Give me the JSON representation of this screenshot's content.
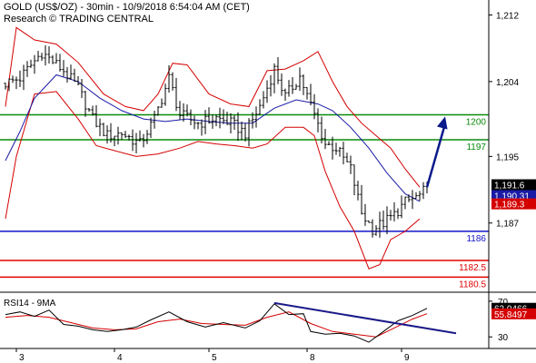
{
  "header": {
    "line1": "GOLD (US$/OZ) - 30min - 10/9/2018 6:54:04 AM (CET)",
    "line2": "Research © TRADING CENTRAL"
  },
  "colors": {
    "price": "#000000",
    "bollinger": "#d40000",
    "moving_average": "#1a1aa6",
    "resistance": "#0a8a0a",
    "support_blue": "#1414c8",
    "support_red": "#e00000",
    "arrow": "#0a1a8a",
    "rsi": "#000000",
    "rsi_ma": "#d40000",
    "rsi_trend": "#1a1a8a"
  },
  "chart_data": [
    {
      "type": "candlestick",
      "title": "GOLD (US$/OZ) - 30min",
      "price_axis_ticks": [
        "1,212",
        "1,204",
        "1,195",
        "1,187"
      ],
      "price_axis_values": [
        1212,
        1204,
        1195,
        1187
      ],
      "ylim": [
        1178.9,
        1213.8
      ],
      "x_tick_labels": [
        "3",
        "4",
        "5",
        "8",
        "9"
      ],
      "x_tick_bars": [
        3,
        30,
        56,
        83,
        109
      ],
      "bar_count": 117,
      "grid": false,
      "price_path": [
        {
          "bar": 0,
          "value": 1203.8
        },
        {
          "bar": 4,
          "value": 1204.4
        },
        {
          "bar": 10,
          "value": 1207.5
        },
        {
          "bar": 16,
          "value": 1205.3
        },
        {
          "bar": 20,
          "value": 1203.2
        },
        {
          "bar": 24,
          "value": 1199.5
        },
        {
          "bar": 28,
          "value": 1197.5
        },
        {
          "bar": 32,
          "value": 1197.8
        },
        {
          "bar": 37,
          "value": 1196.5
        },
        {
          "bar": 41,
          "value": 1199.5
        },
        {
          "bar": 45,
          "value": 1204.4
        },
        {
          "bar": 48,
          "value": 1200.0
        },
        {
          "bar": 53,
          "value": 1199.0
        },
        {
          "bar": 58,
          "value": 1199.6
        },
        {
          "bar": 62,
          "value": 1199.0
        },
        {
          "bar": 66,
          "value": 1197.8
        },
        {
          "bar": 70,
          "value": 1201.0
        },
        {
          "bar": 74,
          "value": 1205.5
        },
        {
          "bar": 77,
          "value": 1202.2
        },
        {
          "bar": 81,
          "value": 1204.6
        },
        {
          "bar": 85,
          "value": 1200.0
        },
        {
          "bar": 88,
          "value": 1196.5
        },
        {
          "bar": 91,
          "value": 1196.0
        },
        {
          "bar": 95,
          "value": 1193.5
        },
        {
          "bar": 98,
          "value": 1188.2
        },
        {
          "bar": 101,
          "value": 1186.3
        },
        {
          "bar": 104,
          "value": 1187.0
        },
        {
          "bar": 107,
          "value": 1188.0
        },
        {
          "bar": 110,
          "value": 1189.5
        },
        {
          "bar": 114,
          "value": 1190.3
        },
        {
          "bar": 116,
          "value": 1191.2
        }
      ],
      "bollinger_upper": [
        {
          "bar": 0,
          "value": 1201.0
        },
        {
          "bar": 3,
          "value": 1210.5
        },
        {
          "bar": 8,
          "value": 1209.0
        },
        {
          "bar": 14,
          "value": 1208.5
        },
        {
          "bar": 20,
          "value": 1206.3
        },
        {
          "bar": 27,
          "value": 1202.5
        },
        {
          "bar": 33,
          "value": 1201.0
        },
        {
          "bar": 38,
          "value": 1200.5
        },
        {
          "bar": 42,
          "value": 1202.5
        },
        {
          "bar": 46,
          "value": 1206.2
        },
        {
          "bar": 50,
          "value": 1206.0
        },
        {
          "bar": 56,
          "value": 1202.5
        },
        {
          "bar": 62,
          "value": 1201.3
        },
        {
          "bar": 67,
          "value": 1201.0
        },
        {
          "bar": 72,
          "value": 1205.3
        },
        {
          "bar": 77,
          "value": 1205.5
        },
        {
          "bar": 82,
          "value": 1206.5
        },
        {
          "bar": 86,
          "value": 1207.6
        },
        {
          "bar": 90,
          "value": 1204.0
        },
        {
          "bar": 94,
          "value": 1201.0
        },
        {
          "bar": 98,
          "value": 1199.0
        },
        {
          "bar": 102,
          "value": 1197.5
        },
        {
          "bar": 106,
          "value": 1196.0
        },
        {
          "bar": 110,
          "value": 1193.5
        },
        {
          "bar": 114,
          "value": 1191.3
        }
      ],
      "bollinger_lower": [
        {
          "bar": 0,
          "value": 1187.5
        },
        {
          "bar": 3,
          "value": 1195.0
        },
        {
          "bar": 8,
          "value": 1202.5
        },
        {
          "bar": 14,
          "value": 1202.8
        },
        {
          "bar": 20,
          "value": 1199.5
        },
        {
          "bar": 25,
          "value": 1196.3
        },
        {
          "bar": 30,
          "value": 1195.7
        },
        {
          "bar": 36,
          "value": 1195.0
        },
        {
          "bar": 42,
          "value": 1195.3
        },
        {
          "bar": 48,
          "value": 1196.0
        },
        {
          "bar": 53,
          "value": 1196.8
        },
        {
          "bar": 58,
          "value": 1196.5
        },
        {
          "bar": 63,
          "value": 1196.3
        },
        {
          "bar": 68,
          "value": 1196.0
        },
        {
          "bar": 72,
          "value": 1196.5
        },
        {
          "bar": 77,
          "value": 1198.5
        },
        {
          "bar": 82,
          "value": 1198.5
        },
        {
          "bar": 85,
          "value": 1197.5
        },
        {
          "bar": 88,
          "value": 1193.2
        },
        {
          "bar": 92,
          "value": 1189.0
        },
        {
          "bar": 96,
          "value": 1186.0
        },
        {
          "bar": 100,
          "value": 1181.5
        },
        {
          "bar": 103,
          "value": 1182.0
        },
        {
          "bar": 106,
          "value": 1185.0
        },
        {
          "bar": 110,
          "value": 1186.0
        },
        {
          "bar": 114,
          "value": 1187.5
        }
      ],
      "moving_average": [
        {
          "bar": 0,
          "value": 1194.5
        },
        {
          "bar": 4,
          "value": 1198.0
        },
        {
          "bar": 8,
          "value": 1202.0
        },
        {
          "bar": 14,
          "value": 1204.8
        },
        {
          "bar": 20,
          "value": 1204.0
        },
        {
          "bar": 26,
          "value": 1202.0
        },
        {
          "bar": 32,
          "value": 1200.5
        },
        {
          "bar": 38,
          "value": 1199.5
        },
        {
          "bar": 44,
          "value": 1199.2
        },
        {
          "bar": 50,
          "value": 1199.5
        },
        {
          "bar": 56,
          "value": 1199.2
        },
        {
          "bar": 62,
          "value": 1199.0
        },
        {
          "bar": 68,
          "value": 1199.0
        },
        {
          "bar": 74,
          "value": 1200.8
        },
        {
          "bar": 80,
          "value": 1201.8
        },
        {
          "bar": 86,
          "value": 1201.3
        },
        {
          "bar": 90,
          "value": 1200.5
        },
        {
          "bar": 95,
          "value": 1198.5
        },
        {
          "bar": 100,
          "value": 1196.0
        },
        {
          "bar": 105,
          "value": 1193.0
        },
        {
          "bar": 110,
          "value": 1190.5
        },
        {
          "bar": 114,
          "value": 1189.6
        }
      ],
      "levels": [
        {
          "value": 1200,
          "label": "1200",
          "kind": "resistance"
        },
        {
          "value": 1197,
          "label": "1197",
          "kind": "resistance"
        },
        {
          "value": 1186,
          "label": "1186",
          "kind": "support_blue"
        },
        {
          "value": 1182.5,
          "label": "1182.5",
          "kind": "support_red"
        },
        {
          "value": 1180.5,
          "label": "1180.5",
          "kind": "support_red"
        }
      ],
      "forecast_arrow": {
        "from_bar": 116,
        "from_value": 1191.3,
        "to_bar": 121,
        "to_value": 1199.8
      },
      "tags": [
        {
          "value": 1191.6,
          "label": "1,191.6",
          "bg": "#000000",
          "fg": "#ffffff"
        },
        {
          "value": 1190.3,
          "label": "1,190.31",
          "bg": "#1a1aa6",
          "fg": "#ffffff"
        },
        {
          "value": 1189.3,
          "label": "1,189.3",
          "bg": "#d40000",
          "fg": "#ffffff"
        }
      ]
    },
    {
      "type": "line",
      "title": "RSI14 - 9MA",
      "ylim": [
        17,
        76
      ],
      "ticks": [
        "70",
        "30"
      ],
      "tick_values": [
        70,
        30
      ],
      "rsi": [
        {
          "bar": 0,
          "value": 55
        },
        {
          "bar": 4,
          "value": 58
        },
        {
          "bar": 8,
          "value": 53
        },
        {
          "bar": 12,
          "value": 60
        },
        {
          "bar": 16,
          "value": 44
        },
        {
          "bar": 20,
          "value": 42
        },
        {
          "bar": 24,
          "value": 38
        },
        {
          "bar": 28,
          "value": 36
        },
        {
          "bar": 32,
          "value": 38
        },
        {
          "bar": 36,
          "value": 41
        },
        {
          "bar": 40,
          "value": 49
        },
        {
          "bar": 45,
          "value": 58
        },
        {
          "bar": 50,
          "value": 47
        },
        {
          "bar": 55,
          "value": 41
        },
        {
          "bar": 60,
          "value": 46
        },
        {
          "bar": 66,
          "value": 40
        },
        {
          "bar": 70,
          "value": 48
        },
        {
          "bar": 74,
          "value": 67
        },
        {
          "bar": 78,
          "value": 55
        },
        {
          "bar": 82,
          "value": 56
        },
        {
          "bar": 84,
          "value": 36
        },
        {
          "bar": 88,
          "value": 33
        },
        {
          "bar": 92,
          "value": 34
        },
        {
          "bar": 96,
          "value": 31
        },
        {
          "bar": 100,
          "value": 24
        },
        {
          "bar": 104,
          "value": 36
        },
        {
          "bar": 108,
          "value": 48
        },
        {
          "bar": 112,
          "value": 54
        },
        {
          "bar": 116,
          "value": 62
        }
      ],
      "rsi_ma": [
        {
          "bar": 0,
          "value": 52
        },
        {
          "bar": 6,
          "value": 54
        },
        {
          "bar": 12,
          "value": 52
        },
        {
          "bar": 18,
          "value": 46
        },
        {
          "bar": 24,
          "value": 40
        },
        {
          "bar": 30,
          "value": 38
        },
        {
          "bar": 36,
          "value": 39
        },
        {
          "bar": 42,
          "value": 47
        },
        {
          "bar": 48,
          "value": 50
        },
        {
          "bar": 54,
          "value": 45
        },
        {
          "bar": 60,
          "value": 44
        },
        {
          "bar": 66,
          "value": 43
        },
        {
          "bar": 72,
          "value": 52
        },
        {
          "bar": 78,
          "value": 58
        },
        {
          "bar": 84,
          "value": 45
        },
        {
          "bar": 90,
          "value": 36
        },
        {
          "bar": 96,
          "value": 33
        },
        {
          "bar": 102,
          "value": 30
        },
        {
          "bar": 108,
          "value": 42
        },
        {
          "bar": 112,
          "value": 50
        },
        {
          "bar": 116,
          "value": 56
        }
      ],
      "trend_line": {
        "from_bar": 74,
        "from_value": 68,
        "to_bar": 124,
        "to_value": 34
      },
      "tags": [
        {
          "value": 62.0466,
          "label": "62.0466",
          "bg": "#000000",
          "fg": "#ffffff"
        },
        {
          "value": 55.8497,
          "label": "55.8497",
          "bg": "#d40000",
          "fg": "#ffffff"
        }
      ]
    }
  ]
}
